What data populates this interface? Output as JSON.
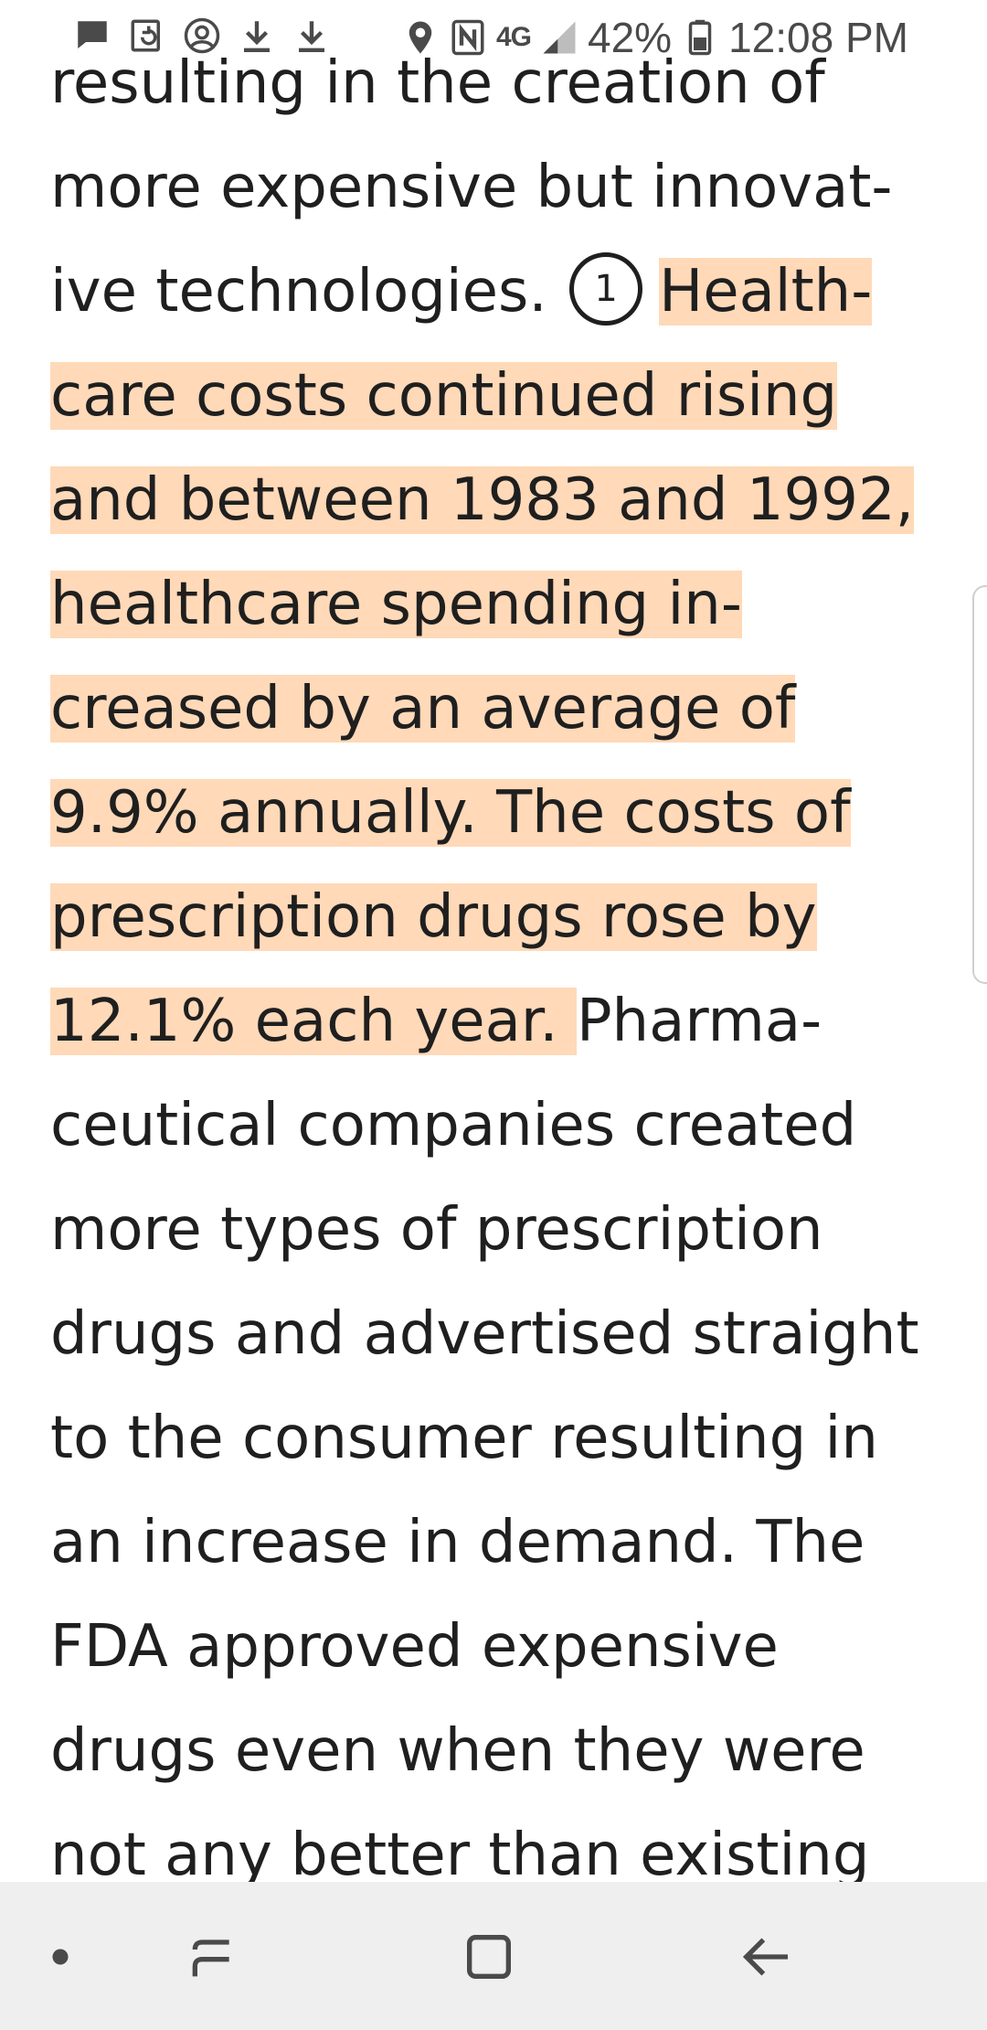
{
  "status_bar": {
    "left_icons": [
      "message-icon",
      "screenshot-icon",
      "account-icon",
      "download-icon",
      "download-icon"
    ],
    "network_label": "4G",
    "battery": "42%",
    "time": "12:08 PM"
  },
  "reader": {
    "lines": [
      {
        "text": "resulting in the creation of",
        "highlight": false
      },
      {
        "text": "more expensive but innovat-",
        "highlight": false
      },
      {
        "pre": "ive technologies. ",
        "marker": "1",
        "post": "Health-",
        "post_highlight": true
      },
      {
        "text": "care costs continued rising",
        "highlight": true
      },
      {
        "text": "and between 1983 and 1992,",
        "highlight": true
      },
      {
        "text": "healthcare spending in-",
        "highlight": true
      },
      {
        "text": "creased by an average of",
        "highlight": true
      },
      {
        "text": "9.9% annually. The costs of",
        "highlight": true
      },
      {
        "text": "prescription drugs rose by",
        "highlight": true
      },
      {
        "pre_hl": "12.1% each year. ",
        "post": "Pharma-"
      },
      {
        "text": "ceutical companies created",
        "highlight": false
      },
      {
        "text": "more types of prescription",
        "highlight": false
      },
      {
        "text": "drugs and advertised straight",
        "highlight": false
      },
      {
        "text": "to the consumer resulting in",
        "highlight": false
      },
      {
        "text": "an increase in demand. The",
        "highlight": false
      },
      {
        "text": "FDA approved expensive",
        "highlight": false
      },
      {
        "text": "drugs even when they were",
        "highlight": false
      },
      {
        "text": "not any better than existing",
        "highlight": false
      }
    ],
    "highlight_color": "#ffd9b8"
  },
  "nav_bar": {
    "buttons": [
      "dot-icon",
      "recent-apps-icon",
      "home-icon",
      "back-icon"
    ]
  }
}
